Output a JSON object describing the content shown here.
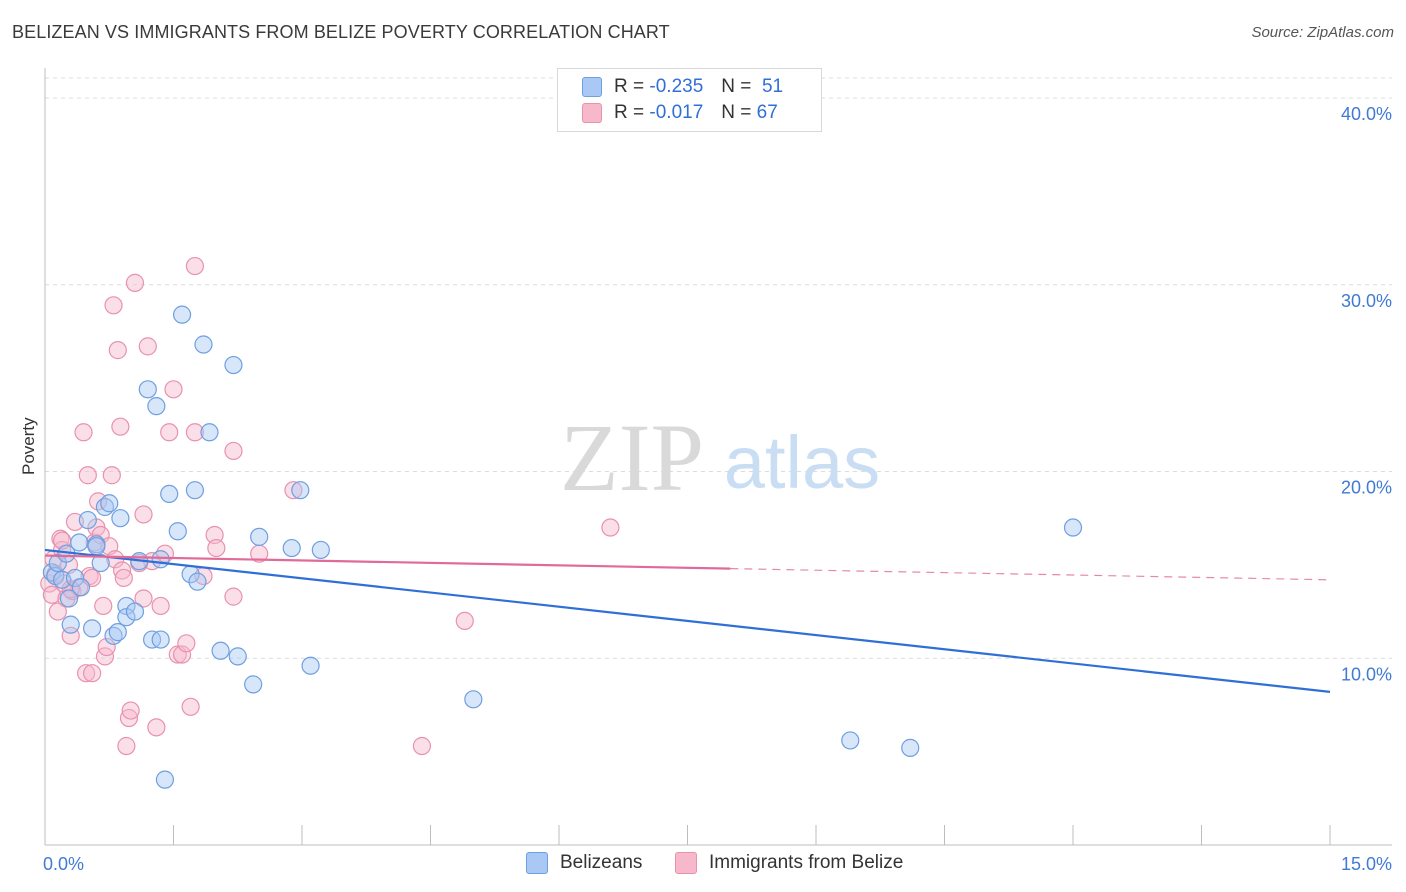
{
  "header": {
    "title": "BELIZEAN VS IMMIGRANTS FROM BELIZE POVERTY CORRELATION CHART",
    "source": "Source: ZipAtlas.com"
  },
  "watermark": {
    "zip": "ZIP",
    "atlas": "atlas"
  },
  "legend": {
    "rows": [
      {
        "r_label": "R =",
        "r_value": "-0.235",
        "n_label": "N =",
        "n_value": "51",
        "color": "#a9c8f4"
      },
      {
        "r_label": "R =",
        "r_value": "-0.017",
        "n_label": "N =",
        "n_value": "67",
        "color": "#f7b8cb"
      }
    ]
  },
  "bottom_legend": {
    "items": [
      {
        "label": "Belizeans",
        "color": "#a9c8f4"
      },
      {
        "label": "Immigrants from Belize",
        "color": "#f7b8cb"
      }
    ]
  },
  "colors": {
    "blue_point_fill": "#a9c8f4",
    "blue_point_stroke": "#6e9fe0",
    "blue_line": "#2f6fd6",
    "pink_point_fill": "#f7b8cb",
    "pink_point_stroke": "#e892ae",
    "pink_line": "#e06a98",
    "axis_text": "#3f7bd4",
    "grid": "#dcdcdc"
  },
  "chart_data": {
    "type": "scatter",
    "title": "BELIZEAN VS IMMIGRANTS FROM BELIZE POVERTY CORRELATION CHART",
    "xlabel": "",
    "ylabel": "Poverty",
    "xlim": [
      0,
      15
    ],
    "ylim": [
      0,
      40
    ],
    "x_tick_labels": [
      "0.0%",
      "15.0%"
    ],
    "y_tick_values": [
      10,
      20,
      30,
      40
    ],
    "y_tick_labels": [
      "10.0%",
      "20.0%",
      "30.0%",
      "40.0%"
    ],
    "grid": true,
    "series": [
      {
        "name": "Belizeans",
        "r": -0.235,
        "n": 51,
        "trend": {
          "x": [
            0,
            15
          ],
          "y": [
            15.8,
            8.2
          ]
        },
        "points": [
          [
            0.08,
            14.6
          ],
          [
            0.12,
            14.4
          ],
          [
            0.15,
            15.1
          ],
          [
            0.2,
            14.2
          ],
          [
            0.25,
            15.6
          ],
          [
            0.28,
            13.2
          ],
          [
            0.3,
            11.8
          ],
          [
            0.35,
            14.3
          ],
          [
            0.4,
            16.2
          ],
          [
            0.42,
            13.8
          ],
          [
            0.5,
            17.4
          ],
          [
            0.55,
            11.6
          ],
          [
            0.6,
            16.1
          ],
          [
            0.65,
            15.1
          ],
          [
            0.7,
            18.1
          ],
          [
            0.75,
            18.3
          ],
          [
            0.8,
            11.2
          ],
          [
            0.85,
            11.4
          ],
          [
            0.88,
            17.5
          ],
          [
            0.95,
            12.8
          ],
          [
            0.95,
            12.2
          ],
          [
            1.05,
            12.5
          ],
          [
            1.1,
            15.2
          ],
          [
            1.2,
            24.4
          ],
          [
            1.25,
            11.0
          ],
          [
            1.3,
            23.5
          ],
          [
            1.35,
            15.3
          ],
          [
            1.35,
            11.0
          ],
          [
            1.4,
            3.5
          ],
          [
            1.45,
            18.8
          ],
          [
            1.55,
            16.8
          ],
          [
            1.6,
            28.4
          ],
          [
            1.7,
            14.5
          ],
          [
            1.75,
            19.0
          ],
          [
            1.78,
            14.1
          ],
          [
            1.85,
            26.8
          ],
          [
            1.92,
            22.1
          ],
          [
            2.05,
            10.4
          ],
          [
            2.2,
            25.7
          ],
          [
            2.25,
            10.1
          ],
          [
            2.43,
            8.6
          ],
          [
            2.5,
            16.5
          ],
          [
            2.88,
            15.9
          ],
          [
            2.98,
            19.0
          ],
          [
            3.1,
            9.6
          ],
          [
            3.22,
            15.8
          ],
          [
            5.0,
            7.8
          ],
          [
            9.4,
            5.6
          ],
          [
            10.1,
            5.2
          ],
          [
            12.0,
            17.0
          ],
          [
            0.6,
            16.0
          ]
        ]
      },
      {
        "name": "Immigrants from Belize",
        "r": -0.017,
        "n": 67,
        "trend": {
          "x": [
            0,
            8.0
          ],
          "y": [
            15.5,
            14.8
          ],
          "dashed_to": {
            "x": 15,
            "y": 14.2
          }
        },
        "points": [
          [
            0.05,
            14.0
          ],
          [
            0.08,
            13.4
          ],
          [
            0.1,
            15.3
          ],
          [
            0.12,
            14.5
          ],
          [
            0.15,
            12.5
          ],
          [
            0.18,
            16.4
          ],
          [
            0.2,
            15.8
          ],
          [
            0.22,
            14.0
          ],
          [
            0.25,
            13.2
          ],
          [
            0.28,
            15.0
          ],
          [
            0.3,
            11.2
          ],
          [
            0.32,
            13.6
          ],
          [
            0.35,
            17.3
          ],
          [
            0.4,
            13.8
          ],
          [
            0.45,
            22.1
          ],
          [
            0.48,
            9.2
          ],
          [
            0.5,
            19.8
          ],
          [
            0.52,
            14.4
          ],
          [
            0.55,
            9.2
          ],
          [
            0.58,
            16.2
          ],
          [
            0.6,
            17.0
          ],
          [
            0.62,
            18.4
          ],
          [
            0.65,
            16.6
          ],
          [
            0.68,
            12.8
          ],
          [
            0.7,
            10.1
          ],
          [
            0.72,
            10.6
          ],
          [
            0.75,
            16.0
          ],
          [
            0.78,
            19.8
          ],
          [
            0.8,
            28.9
          ],
          [
            0.82,
            15.3
          ],
          [
            0.85,
            26.5
          ],
          [
            0.88,
            22.4
          ],
          [
            0.9,
            14.7
          ],
          [
            0.92,
            14.3
          ],
          [
            0.95,
            5.3
          ],
          [
            0.98,
            6.8
          ],
          [
            1.0,
            7.2
          ],
          [
            1.05,
            30.1
          ],
          [
            1.1,
            15.1
          ],
          [
            1.15,
            17.7
          ],
          [
            1.15,
            13.2
          ],
          [
            1.2,
            26.7
          ],
          [
            1.25,
            15.2
          ],
          [
            1.3,
            6.3
          ],
          [
            1.35,
            12.8
          ],
          [
            1.4,
            15.6
          ],
          [
            1.45,
            22.1
          ],
          [
            1.5,
            24.4
          ],
          [
            1.55,
            10.2
          ],
          [
            1.6,
            10.2
          ],
          [
            1.65,
            10.8
          ],
          [
            1.7,
            7.4
          ],
          [
            1.75,
            22.1
          ],
          [
            1.75,
            31.0
          ],
          [
            1.85,
            14.4
          ],
          [
            1.98,
            16.6
          ],
          [
            2.0,
            15.9
          ],
          [
            2.2,
            13.3
          ],
          [
            2.2,
            21.1
          ],
          [
            2.5,
            15.6
          ],
          [
            2.9,
            19.0
          ],
          [
            4.4,
            5.3
          ],
          [
            4.9,
            12.0
          ],
          [
            6.6,
            17.0
          ],
          [
            0.3,
            13.7
          ],
          [
            0.55,
            14.3
          ],
          [
            0.2,
            16.3
          ]
        ]
      }
    ]
  }
}
